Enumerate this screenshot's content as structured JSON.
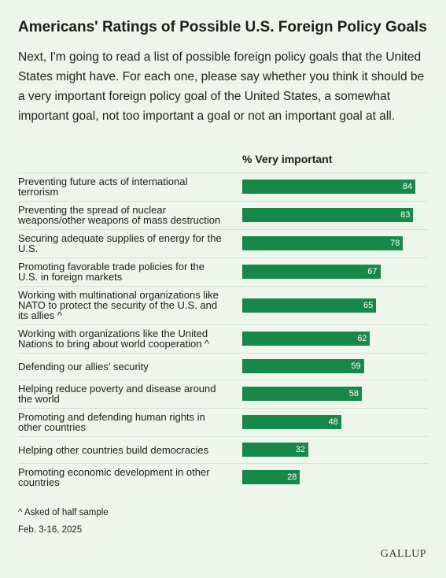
{
  "chart_data": {
    "type": "bar",
    "title": "Americans' Ratings of Possible U.S. Foreign Policy Goals",
    "subtitle": "Next, I'm going to read a list of possible foreign policy goals that the United States might have. For each one, please say whether you think it should be a very important foreign policy goal of the United States, a somewhat important goal, not too important a goal or not an important goal at all.",
    "value_header": "% Very important",
    "categories": [
      "Preventing future acts of international terrorism",
      "Preventing the spread of nuclear weapons/other weapons of mass destruction",
      "Securing adequate supplies of energy for the U.S.",
      "Promoting favorable trade policies for the U.S. in foreign markets",
      "Working with multinational organizations like NATO to protect the security of the U.S. and its allies ^",
      "Working with organizations like the United Nations to bring about world cooperation ^",
      "Defending our allies' security",
      "Helping reduce poverty and disease around the world",
      "Promoting and defending human rights in other countries",
      "Helping other countries build democracies",
      "Promoting economic development in other countries"
    ],
    "values": [
      84,
      83,
      78,
      67,
      65,
      62,
      59,
      58,
      48,
      32,
      28
    ],
    "color": "#17884a",
    "note": "^ Asked of half sample",
    "date": "Feb. 3-16, 2025",
    "source": "GALLUP"
  }
}
